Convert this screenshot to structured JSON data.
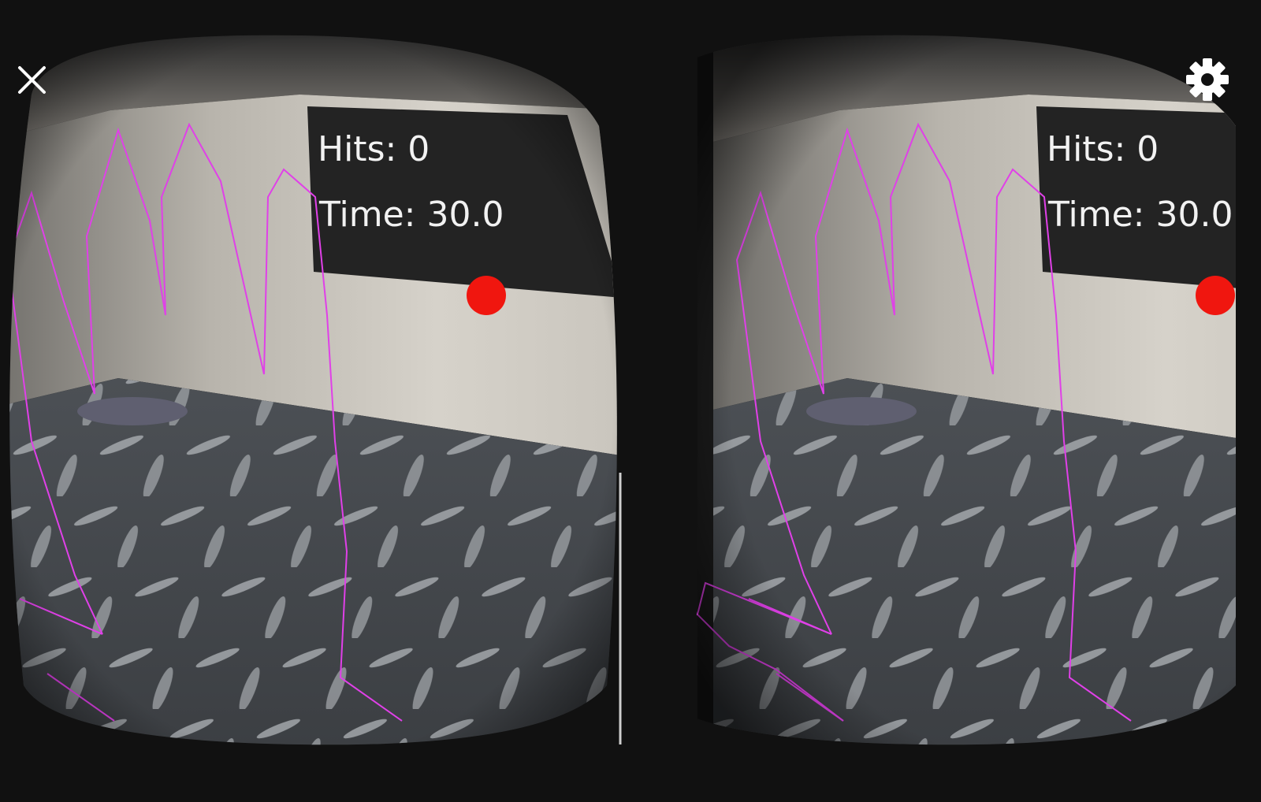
{
  "hud": {
    "hits": "Hits: 0",
    "time": "Time: 30.0"
  }
}
